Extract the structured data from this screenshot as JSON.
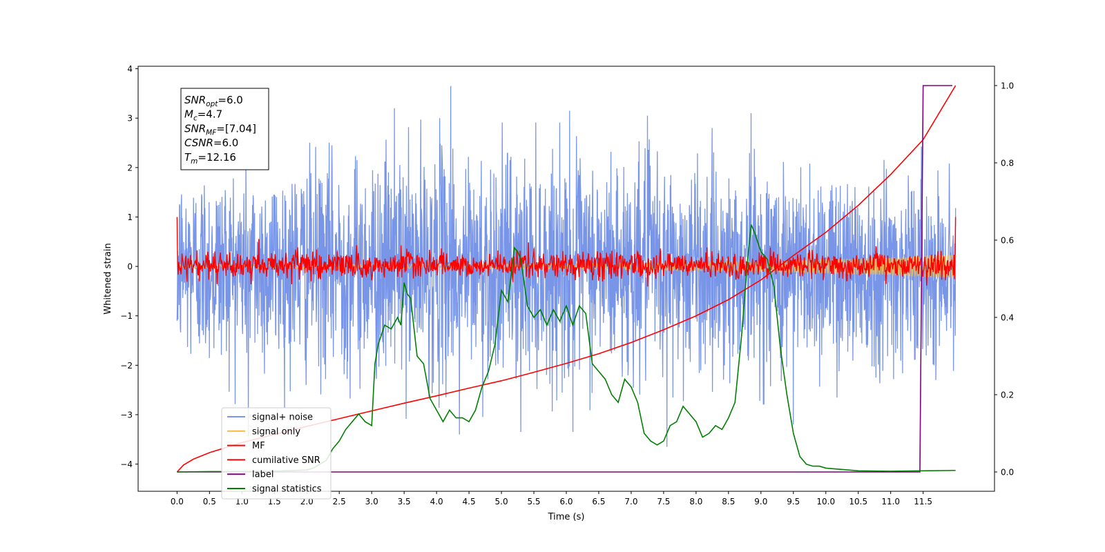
{
  "chart_data": {
    "type": "line",
    "title": "",
    "xlabel": "Time (s)",
    "ylabel": "Whitened strain",
    "xlim": [
      -0.6,
      12.6
    ],
    "ylim": [
      -4.55,
      4.05
    ],
    "y2lim": [
      -0.05,
      1.05
    ],
    "xticks": [
      0.0,
      0.5,
      1.0,
      1.5,
      2.0,
      2.5,
      3.0,
      3.5,
      4.0,
      4.5,
      5.0,
      5.5,
      6.0,
      6.5,
      7.0,
      7.5,
      8.0,
      8.5,
      9.0,
      9.5,
      10.0,
      10.5,
      11.0,
      11.5
    ],
    "xtick_labels": [
      "0.0",
      "0.5",
      "1.0",
      "1.5",
      "2.0",
      "2.5",
      "3.0",
      "3.5",
      "4.0",
      "4.5",
      "5.0",
      "5.5",
      "6.0",
      "6.5",
      "7.0",
      "7.5",
      "8.0",
      "8.5",
      "9.0",
      "9.5",
      "10.0",
      "10.5",
      "11.0",
      "11.5"
    ],
    "yticks": [
      -4,
      -3,
      -2,
      -1,
      0,
      1,
      2,
      3,
      4
    ],
    "ytick_labels": [
      "−4",
      "−3",
      "−2",
      "−1",
      "0",
      "1",
      "2",
      "3",
      "4"
    ],
    "y2ticks": [
      0.0,
      0.2,
      0.4,
      0.6,
      0.8,
      1.0
    ],
    "y2tick_labels": [
      "0.0",
      "0.2",
      "0.4",
      "0.6",
      "0.8",
      "1.0"
    ],
    "grid": false,
    "legend_position": "lower-left",
    "annotation": {
      "lines": [
        {
          "base": "SNR",
          "sub": "opt",
          "rest": "=6.0"
        },
        {
          "base": "M",
          "sub": "c",
          "rest": "=4.7"
        },
        {
          "base": "SNR",
          "sub": "MF",
          "rest": "=[7.04]"
        },
        {
          "base": "CSNR",
          "sub": "",
          "rest": "=6.0"
        },
        {
          "base": "T",
          "sub": "m",
          "rest": "=12.16"
        }
      ]
    },
    "series": [
      {
        "name": "signal+ noise",
        "color": "#7895e8",
        "axis": "left",
        "kind": "noise",
        "x_range": [
          0.0,
          12.0
        ],
        "envelope": {
          "x": [
            0.0,
            1.0,
            2.0,
            3.0,
            4.0,
            5.0,
            6.0,
            7.0,
            8.0,
            9.0,
            10.0,
            11.0,
            12.0
          ],
          "upper": [
            2.2,
            2.3,
            2.4,
            2.5,
            2.7,
            2.6,
            2.6,
            2.5,
            2.5,
            2.5,
            2.4,
            2.4,
            1.9
          ],
          "lower": [
            -2.4,
            -2.5,
            -2.6,
            -2.7,
            -2.8,
            -2.7,
            -2.6,
            -2.6,
            -2.5,
            -2.5,
            -2.4,
            -2.4,
            -1.9
          ]
        },
        "peaks": [
          {
            "x": 4.22,
            "y": 3.65
          },
          {
            "x": 3.35,
            "y": 3.2
          },
          {
            "x": 6.05,
            "y": 3.15
          },
          {
            "x": 8.85,
            "y": 3.1
          },
          {
            "x": 4.05,
            "y": 3.0
          },
          {
            "x": 7.25,
            "y": 3.05
          },
          {
            "x": 1.1,
            "y": -3.45
          },
          {
            "x": 4.35,
            "y": -3.4
          },
          {
            "x": 5.3,
            "y": -3.35
          },
          {
            "x": 7.55,
            "y": -3.65
          },
          {
            "x": 9.5,
            "y": -3.2
          },
          {
            "x": 6.1,
            "y": -3.35
          }
        ]
      },
      {
        "name": "signal only",
        "color": "#f5b942",
        "axis": "left",
        "kind": "chirp",
        "x_range": [
          0.0,
          12.0
        ],
        "amplitude_x": [
          0.0,
          6.0,
          9.0,
          11.0,
          12.0
        ],
        "amplitude": [
          0.03,
          0.05,
          0.1,
          0.18,
          0.25
        ]
      },
      {
        "name": "MF",
        "color": "#ff0000",
        "axis": "left",
        "kind": "mf",
        "x_range": [
          0.0,
          12.0
        ],
        "amplitude": 0.15,
        "endpoints": {
          "start": 1.0,
          "end": 1.0
        }
      },
      {
        "name": "cumilative SNR",
        "color": "#ff0000",
        "axis": "right",
        "kind": "line",
        "x": [
          0.0,
          0.1,
          0.25,
          0.5,
          1.0,
          1.5,
          2.0,
          2.5,
          3.0,
          3.5,
          4.0,
          4.5,
          5.0,
          5.5,
          6.0,
          6.5,
          7.0,
          7.5,
          8.0,
          8.5,
          9.0,
          9.5,
          10.0,
          10.5,
          11.0,
          11.5,
          12.0
        ],
        "y": [
          0.0,
          0.018,
          0.033,
          0.05,
          0.076,
          0.097,
          0.118,
          0.138,
          0.158,
          0.178,
          0.197,
          0.217,
          0.236,
          0.258,
          0.281,
          0.306,
          0.335,
          0.368,
          0.404,
          0.446,
          0.497,
          0.56,
          0.62,
          0.69,
          0.77,
          0.86,
          1.0
        ]
      },
      {
        "name": "label",
        "color": "#800080",
        "axis": "right",
        "kind": "line",
        "x": [
          0.0,
          11.45,
          11.5,
          11.95
        ],
        "y": [
          0.0,
          0.0,
          1.0,
          1.0
        ]
      },
      {
        "name": "signal statistics",
        "color": "#008000",
        "axis": "right",
        "kind": "line",
        "x": [
          0.0,
          0.5,
          1.0,
          1.5,
          2.0,
          2.1,
          2.2,
          2.3,
          2.4,
          2.5,
          2.6,
          2.7,
          2.8,
          2.9,
          3.0,
          3.05,
          3.1,
          3.2,
          3.3,
          3.4,
          3.45,
          3.5,
          3.55,
          3.6,
          3.7,
          3.8,
          3.9,
          4.0,
          4.1,
          4.2,
          4.3,
          4.4,
          4.5,
          4.6,
          4.7,
          4.8,
          4.9,
          5.0,
          5.1,
          5.2,
          5.25,
          5.3,
          5.4,
          5.5,
          5.6,
          5.7,
          5.8,
          5.9,
          6.0,
          6.1,
          6.2,
          6.3,
          6.4,
          6.5,
          6.6,
          6.7,
          6.8,
          6.9,
          7.0,
          7.1,
          7.2,
          7.3,
          7.4,
          7.5,
          7.6,
          7.7,
          7.8,
          7.9,
          8.0,
          8.1,
          8.2,
          8.3,
          8.4,
          8.5,
          8.6,
          8.7,
          8.8,
          8.85,
          8.9,
          9.0,
          9.1,
          9.2,
          9.3,
          9.4,
          9.5,
          9.6,
          9.7,
          9.8,
          9.9,
          10.0,
          10.5,
          11.0,
          11.5,
          12.0
        ],
        "y": [
          0.0,
          0.001,
          0.001,
          0.002,
          0.005,
          0.01,
          0.02,
          0.03,
          0.06,
          0.08,
          0.11,
          0.13,
          0.15,
          0.13,
          0.12,
          0.28,
          0.33,
          0.38,
          0.37,
          0.4,
          0.38,
          0.49,
          0.46,
          0.45,
          0.3,
          0.28,
          0.19,
          0.16,
          0.13,
          0.16,
          0.14,
          0.14,
          0.13,
          0.16,
          0.22,
          0.26,
          0.33,
          0.47,
          0.44,
          0.58,
          0.57,
          0.55,
          0.43,
          0.4,
          0.42,
          0.38,
          0.42,
          0.39,
          0.43,
          0.38,
          0.43,
          0.41,
          0.28,
          0.26,
          0.24,
          0.2,
          0.18,
          0.24,
          0.22,
          0.18,
          0.1,
          0.08,
          0.07,
          0.08,
          0.12,
          0.13,
          0.17,
          0.15,
          0.13,
          0.09,
          0.1,
          0.12,
          0.11,
          0.14,
          0.18,
          0.35,
          0.56,
          0.64,
          0.62,
          0.57,
          0.55,
          0.48,
          0.32,
          0.2,
          0.1,
          0.04,
          0.02,
          0.015,
          0.015,
          0.01,
          0.003,
          0.002,
          0.003,
          0.004
        ]
      }
    ]
  }
}
